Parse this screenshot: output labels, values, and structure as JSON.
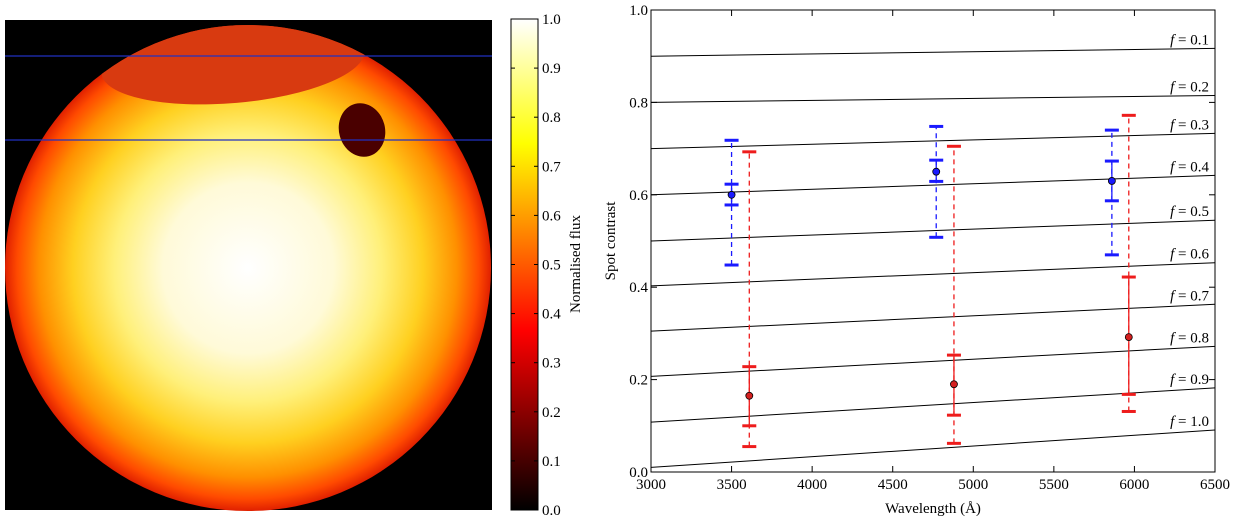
{
  "chart_data": [
    {
      "type": "heatmap",
      "title": "",
      "colorbar": {
        "label": "Normalised flux",
        "range": [
          0.0,
          1.0
        ],
        "ticks": [
          "0.0",
          "0.1",
          "0.2",
          "0.3",
          "0.4",
          "0.5",
          "0.6",
          "0.7",
          "0.8",
          "0.9",
          "1.0"
        ],
        "colormap": "hot"
      },
      "colors": {
        "background": "#000000",
        "limb": "#e02000",
        "center": "#ffffff",
        "spot_band": "#d83a10",
        "small_spot": "#4a0000",
        "transit_chord": "#2030c0"
      },
      "transit_chord_lines": 2
    },
    {
      "type": "scatter",
      "xlabel": "Wavelength (Å)",
      "ylabel": "Spot contrast",
      "xlim": [
        3000,
        6500
      ],
      "ylim": [
        0.0,
        1.0
      ],
      "xticks": [
        "3000",
        "3500",
        "4000",
        "4500",
        "5000",
        "5500",
        "6000",
        "6500"
      ],
      "yticks": [
        "0.0",
        "0.2",
        "0.4",
        "0.6",
        "0.8",
        "1.0"
      ],
      "reference_lines": [
        {
          "label": "f = 0.1",
          "f": "0.1",
          "y_start": 0.9,
          "y_end": 0.917
        },
        {
          "label": "f = 0.2",
          "f": "0.2",
          "y_start": 0.8,
          "y_end": 0.815
        },
        {
          "label": "f = 0.3",
          "f": "0.3",
          "y_start": 0.7,
          "y_end": 0.733
        },
        {
          "label": "f = 0.4",
          "f": "0.4",
          "y_start": 0.6,
          "y_end": 0.642
        },
        {
          "label": "f = 0.5",
          "f": "0.5",
          "y_start": 0.5,
          "y_end": 0.545
        },
        {
          "label": "f = 0.6",
          "f": "0.6",
          "y_start": 0.403,
          "y_end": 0.453
        },
        {
          "label": "f = 0.7",
          "f": "0.7",
          "y_start": 0.305,
          "y_end": 0.363
        },
        {
          "label": "f = 0.8",
          "f": "0.8",
          "y_start": 0.207,
          "y_end": 0.272
        },
        {
          "label": "f = 0.9",
          "f": "0.9",
          "y_start": 0.108,
          "y_end": 0.182
        },
        {
          "label": "f = 1.0",
          "f": "1.0",
          "y_start": 0.01,
          "y_end": 0.091
        }
      ],
      "series": [
        {
          "color": "#1a1aff",
          "points": [
            {
              "x": 3500,
              "y": 0.6,
              "inner": [
                0.578,
                0.623
              ],
              "outer": [
                0.448,
                0.718
              ]
            },
            {
              "x": 4770,
              "y": 0.65,
              "inner": [
                0.629,
                0.675
              ],
              "outer": [
                0.508,
                0.748
              ]
            },
            {
              "x": 5860,
              "y": 0.63,
              "inner": [
                0.587,
                0.673
              ],
              "outer": [
                0.47,
                0.74
              ]
            }
          ]
        },
        {
          "color": "#ee1c1c",
          "points": [
            {
              "x": 3610,
              "y": 0.165,
              "inner": [
                0.1,
                0.228
              ],
              "outer": [
                0.055,
                0.693
              ]
            },
            {
              "x": 4880,
              "y": 0.19,
              "inner": [
                0.123,
                0.253
              ],
              "outer": [
                0.062,
                0.705
              ]
            },
            {
              "x": 5965,
              "y": 0.292,
              "inner": [
                0.168,
                0.422
              ],
              "outer": [
                0.131,
                0.772
              ]
            }
          ]
        }
      ]
    }
  ]
}
